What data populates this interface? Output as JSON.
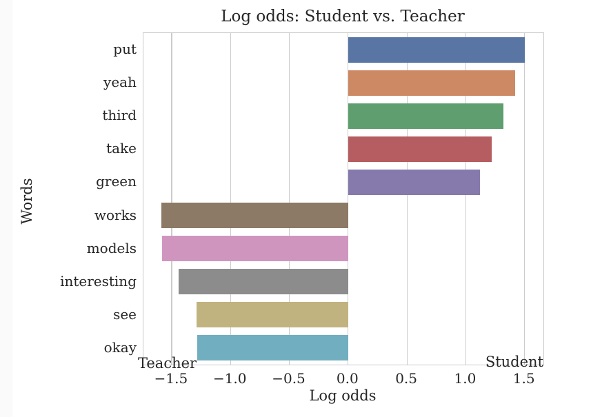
{
  "page": {
    "background_color": "#fafafa",
    "figure_background_color": "#ffffff"
  },
  "chart_data": {
    "type": "bar",
    "orientation": "horizontal",
    "title": "Log odds: Student vs. Teacher",
    "xlabel": "Log odds",
    "ylabel": "Words",
    "categories": [
      "put",
      "yeah",
      "third",
      "take",
      "green",
      "works",
      "models",
      "interesting",
      "see",
      "okay"
    ],
    "values": [
      1.5,
      1.42,
      1.32,
      1.22,
      1.12,
      -1.59,
      -1.58,
      -1.44,
      -1.29,
      -1.28
    ],
    "bar_colors": [
      "#5875a3",
      "#cc8963",
      "#5f9e6e",
      "#b55d60",
      "#857aab",
      "#8c7966",
      "#d095bf",
      "#8c8c8c",
      "#c1b37f",
      "#71aec0"
    ],
    "xlim": [
      -1.74,
      1.66
    ],
    "xticks": [
      -1.5,
      -1.0,
      -0.5,
      0.0,
      0.5,
      1.0,
      1.5
    ],
    "xtick_labels": [
      "−1.5",
      "−1.0",
      "−0.5",
      "0.0",
      "0.5",
      "1.0",
      "1.5"
    ],
    "grid": "vertical gridlines on, drawn behind bars",
    "legend": "none",
    "annotations": [
      {
        "text": "Teacher",
        "position": "bottom-left inside axes"
      },
      {
        "text": "Student",
        "position": "bottom-right inside axes"
      }
    ],
    "colors": {
      "text": "#262626",
      "grid": "#cccccc",
      "spine": "#c9c9c9"
    }
  }
}
